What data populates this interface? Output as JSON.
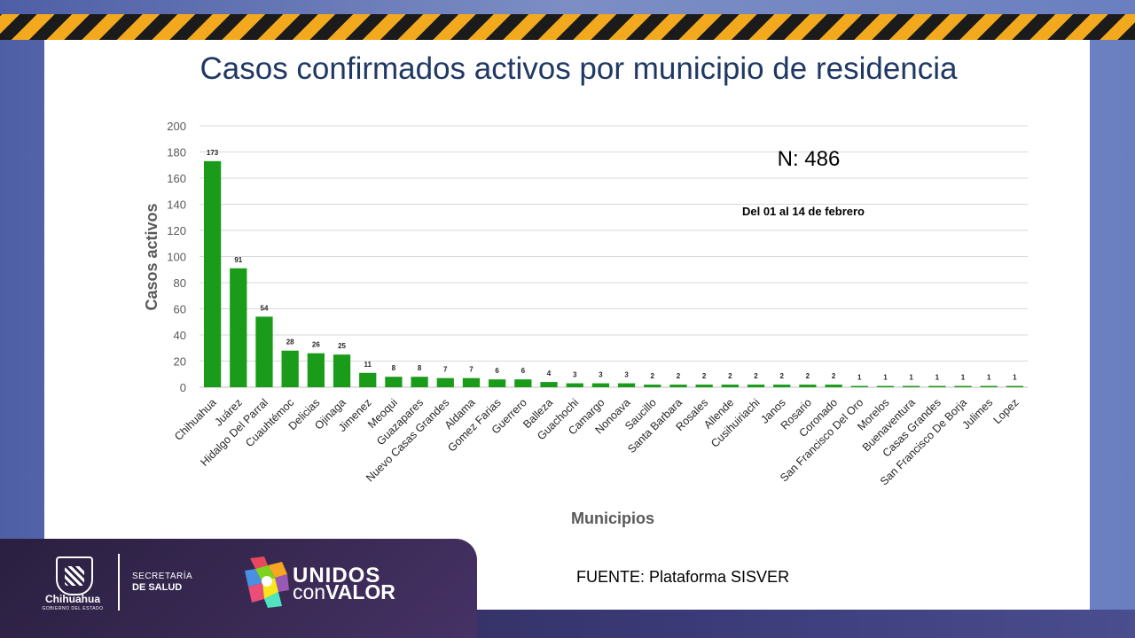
{
  "slide": {
    "title": "Casos confirmados activos por municipio de residencia",
    "source": "FUENTE: Plataforma SISVER",
    "footer": {
      "state_name": "Chihuahua",
      "state_subtitle": "GOBIERNO DEL ESTADO",
      "dept_line1": "SECRETARÍA",
      "dept_line2": "DE SALUD",
      "slogan_line1": "UNIDOS",
      "slogan_line2_a": "con",
      "slogan_line2_b": "VALOR"
    },
    "colors": {
      "title": "#1f3864",
      "bar": "#1a9c1a",
      "hazard_yellow": "#f2a91e",
      "hazard_black": "#1b1b1b"
    }
  },
  "chart_data": {
    "type": "bar",
    "title": "Casos confirmados activos por municipio de residencia",
    "xlabel": "Municipios",
    "ylabel": "Casos activos",
    "ylim": [
      0,
      200
    ],
    "yticks": [
      0,
      20,
      40,
      60,
      80,
      100,
      120,
      140,
      160,
      180,
      200
    ],
    "grid": true,
    "categories": [
      "Chihuahua",
      "Juárez",
      "Hidalgo Del Parral",
      "Cuauhtémoc",
      "Delicias",
      "Ojinaga",
      "Jimenez",
      "Meoqui",
      "Guazapares",
      "Nuevo Casas Grandes",
      "Aldama",
      "Gomez Farias",
      "Guerrero",
      "Balleza",
      "Guachochi",
      "Camargo",
      "Nonoava",
      "Saucillo",
      "Santa Barbara",
      "Rosales",
      "Allende",
      "Cusihuiriachi",
      "Janos",
      "Rosario",
      "Coronado",
      "San Francisco Del Oro",
      "Morelos",
      "Buenaventura",
      "Casas Grandes",
      "San Francisco De Borja",
      "Julimes",
      "Lopez"
    ],
    "values": [
      173,
      91,
      54,
      28,
      26,
      25,
      11,
      8,
      8,
      7,
      7,
      6,
      6,
      4,
      3,
      3,
      3,
      2,
      2,
      2,
      2,
      2,
      2,
      2,
      2,
      1,
      1,
      1,
      1,
      1,
      1,
      1
    ],
    "annotations": [
      "N: 486",
      "Del 01 al 14 de febrero"
    ]
  }
}
